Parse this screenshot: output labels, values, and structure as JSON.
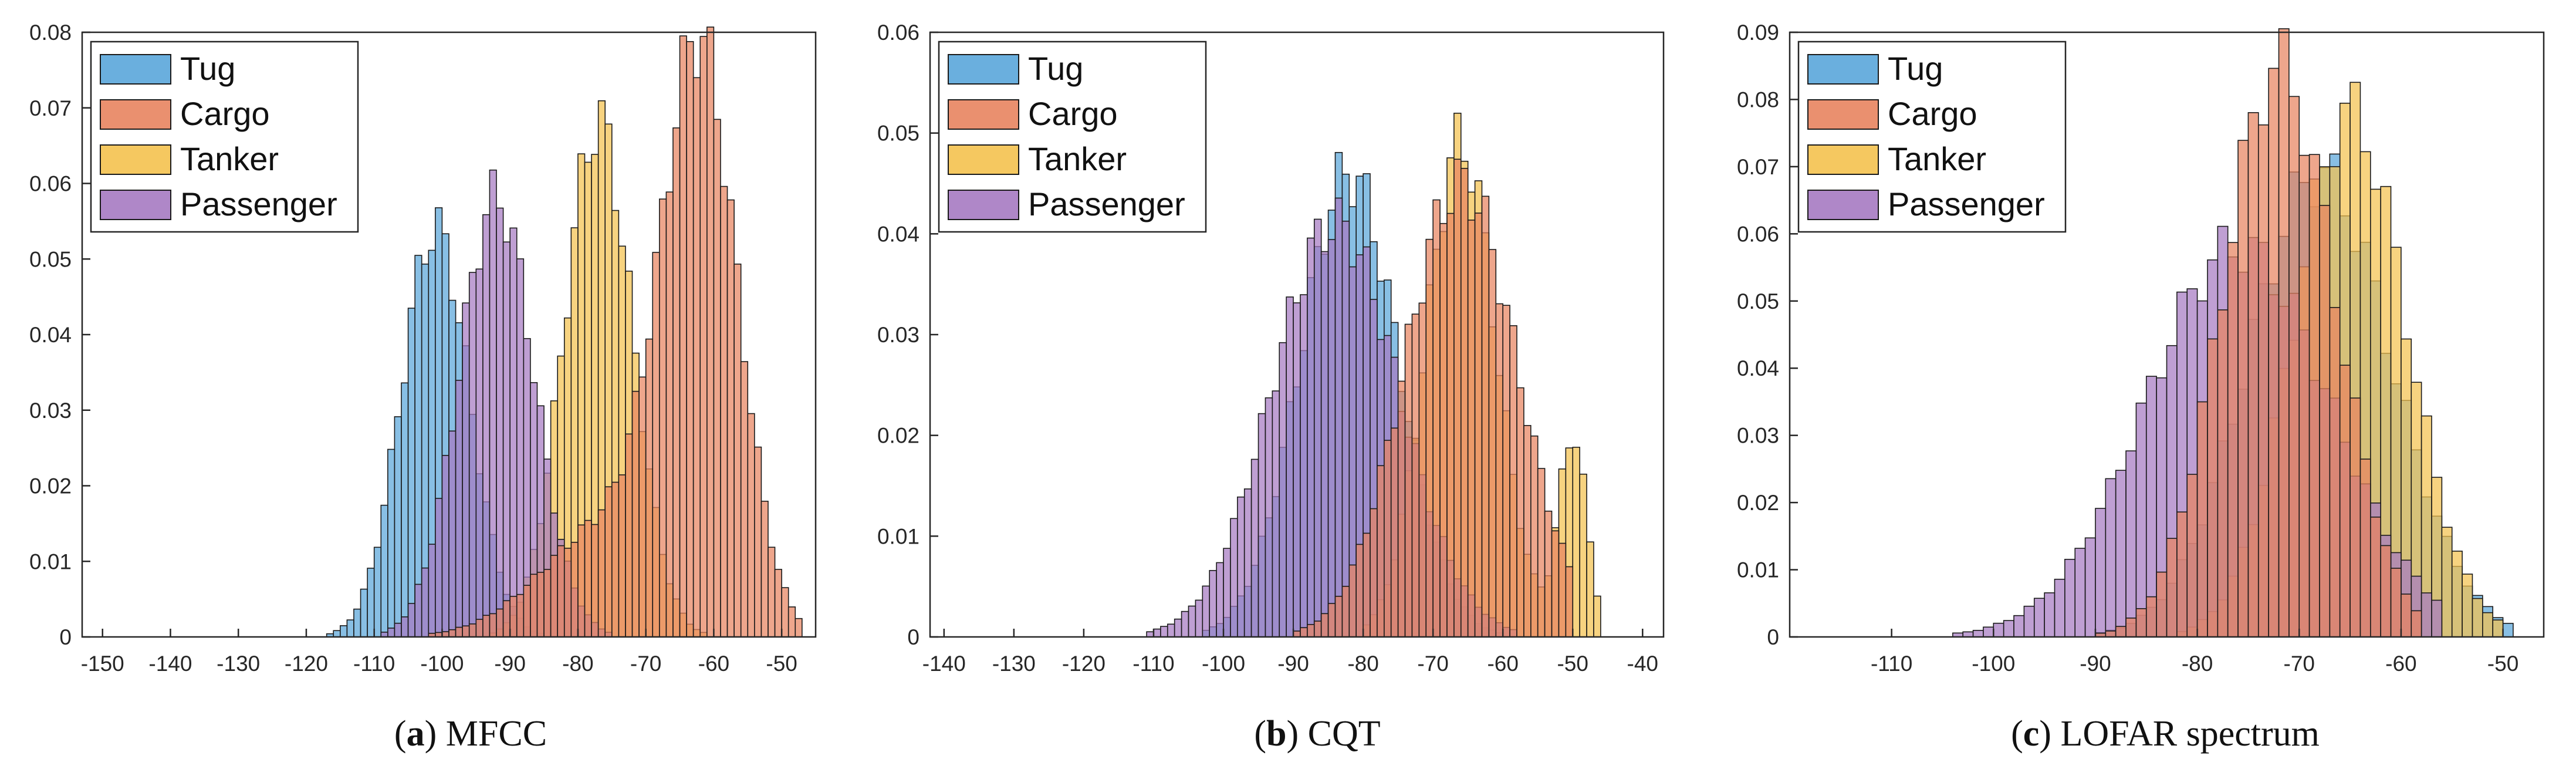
{
  "colors": {
    "Tug": "#5aa6da",
    "Cargo": "#e8845f",
    "Tanker": "#f4c24f",
    "Passenger": "#a67ac2"
  },
  "chart_data": [
    {
      "type": "histogram",
      "panel_letter": "a",
      "caption_text": " MFCC",
      "xlim": [
        -153,
        -45
      ],
      "ylim": [
        0,
        0.08
      ],
      "xticks": [
        -150,
        -140,
        -130,
        -120,
        -110,
        -100,
        -90,
        -80,
        -70,
        -60,
        -50
      ],
      "xtick_labels": [
        "-150",
        "-140",
        "-130",
        "-120",
        "-110",
        "-100",
        "-90",
        "-80",
        "-70",
        "-60",
        "-50"
      ],
      "yticks": [
        0,
        0.01,
        0.02,
        0.03,
        0.04,
        0.05,
        0.06,
        0.07,
        0.08
      ],
      "ytick_labels": [
        "0",
        "0.01",
        "0.02",
        "0.03",
        "0.04",
        "0.05",
        "0.06",
        "0.07",
        "0.08"
      ],
      "legend": [
        "Tug",
        "Cargo",
        "Tanker",
        "Passenger"
      ],
      "legend_position": "top-left",
      "series": [
        {
          "name": "Tug",
          "peaks": [
            [
              -101,
              0.054,
              5
            ]
          ],
          "range": [
            -131,
            -82
          ]
        },
        {
          "name": "Cargo",
          "peaks": [
            [
              -62,
              0.073,
              5.5
            ],
            [
              -75,
              0.015,
              10
            ]
          ],
          "range": [
            -106,
            -47
          ]
        },
        {
          "name": "Tanker",
          "peaks": [
            [
              -77,
              0.068,
              5
            ]
          ],
          "range": [
            -104,
            -58
          ]
        },
        {
          "name": "Passenger",
          "peaks": [
            [
              -92,
              0.058,
              5.5
            ]
          ],
          "range": [
            -118,
            -71
          ]
        }
      ]
    },
    {
      "type": "histogram",
      "panel_letter": "b",
      "caption_text": " CQT",
      "xlim": [
        -142,
        -37
      ],
      "ylim": [
        0,
        0.06
      ],
      "xticks": [
        -140,
        -130,
        -120,
        -110,
        -100,
        -90,
        -80,
        -70,
        -60,
        -50,
        -40
      ],
      "xtick_labels": [
        "-140",
        "-130",
        "-120",
        "-110",
        "-100",
        "-90",
        "-80",
        "-70",
        "-60",
        "-50",
        "-40"
      ],
      "yticks": [
        0,
        0.01,
        0.02,
        0.03,
        0.04,
        0.05,
        0.06
      ],
      "ytick_labels": [
        "0",
        "0.01",
        "0.02",
        "0.03",
        "0.04",
        "0.05",
        "0.06"
      ],
      "legend": [
        "Tug",
        "Cargo",
        "Tanker",
        "Passenger"
      ],
      "legend_position": "top-left",
      "series": [
        {
          "name": "Tug",
          "peaks": [
            [
              -82,
              0.046,
              7
            ]
          ],
          "range": [
            -106,
            -58
          ]
        },
        {
          "name": "Cargo",
          "peaks": [
            [
              -66,
              0.045,
              8
            ]
          ],
          "range": [
            -98,
            -50
          ]
        },
        {
          "name": "Tanker",
          "peaks": [
            [
              -66,
              0.049,
              5
            ],
            [
              -50,
              0.02,
              2
            ]
          ],
          "range": [
            -80,
            -46
          ]
        },
        {
          "name": "Passenger",
          "peaks": [
            [
              -84,
              0.041,
              9
            ]
          ],
          "range": [
            -121,
            -58
          ]
        }
      ]
    },
    {
      "type": "histogram",
      "panel_letter": "c",
      "caption_text": " LOFAR spectrum",
      "xlim": [
        -120,
        -46
      ],
      "ylim": [
        0,
        0.09
      ],
      "xticks": [
        -110,
        -100,
        -90,
        -80,
        -70,
        -60,
        -50
      ],
      "xtick_labels": [
        "-110",
        "-100",
        "-90",
        "-80",
        "-70",
        "-60",
        "-50"
      ],
      "yticks": [
        0,
        0.01,
        0.02,
        0.03,
        0.04,
        0.05,
        0.06,
        0.07,
        0.08,
        0.09
      ],
      "ytick_labels": [
        "0",
        "0.01",
        "0.02",
        "0.03",
        "0.04",
        "0.05",
        "0.06",
        "0.07",
        "0.08",
        "0.09"
      ],
      "legend": [
        "Tug",
        "Cargo",
        "Tanker",
        "Passenger"
      ],
      "legend_position": "top-left",
      "series": [
        {
          "name": "Tug",
          "peaks": [
            [
              -68,
              0.069,
              7
            ]
          ],
          "range": [
            -90,
            -49
          ]
        },
        {
          "name": "Cargo",
          "peaks": [
            [
              -72,
              0.085,
              5.5
            ]
          ],
          "range": [
            -102,
            -58
          ]
        },
        {
          "name": "Tanker",
          "peaks": [
            [
              -65,
              0.078,
              5.5
            ]
          ],
          "range": [
            -82,
            -50
          ]
        },
        {
          "name": "Passenger",
          "peaks": [
            [
              -76,
              0.058,
              9
            ]
          ],
          "range": [
            -104,
            -56
          ]
        }
      ]
    }
  ]
}
